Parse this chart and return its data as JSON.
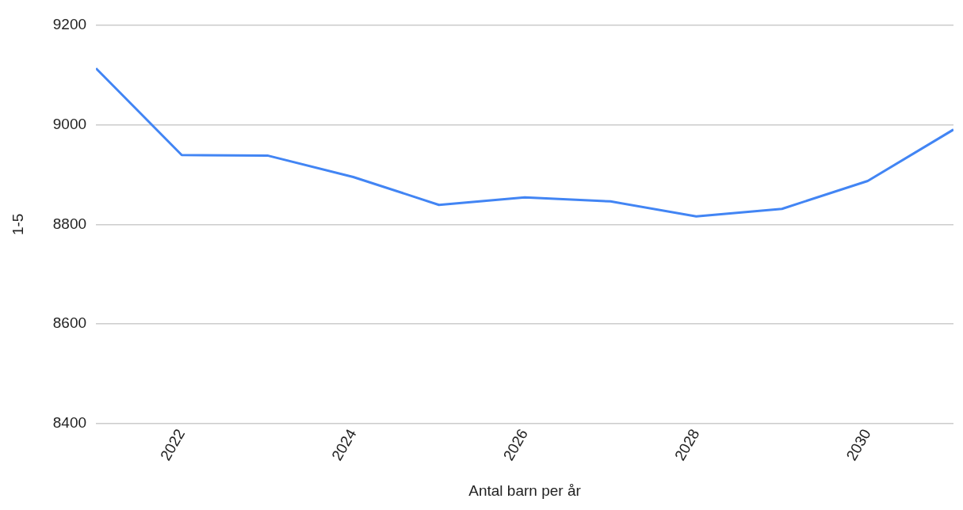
{
  "chart_data": {
    "type": "line",
    "xlabel": "Antal barn per år",
    "ylabel": "1-5",
    "x": [
      2021,
      2022,
      2023,
      2024,
      2025,
      2026,
      2027,
      2028,
      2029,
      2030,
      2031
    ],
    "series": [
      {
        "color": "#4285f4",
        "values": [
          9113,
          8939,
          8938,
          8895,
          8839,
          8854,
          8846,
          8816,
          8831,
          8887,
          8990
        ]
      }
    ],
    "xlim": [
      2021,
      2031
    ],
    "xticks": [
      2022,
      2024,
      2026,
      2028,
      2030
    ],
    "ylim": [
      8400,
      9200
    ],
    "yticks": [
      8400,
      8600,
      8800,
      9000,
      9200
    ],
    "grid": "y",
    "legend": false,
    "marker": "none",
    "line_style": "solid"
  }
}
